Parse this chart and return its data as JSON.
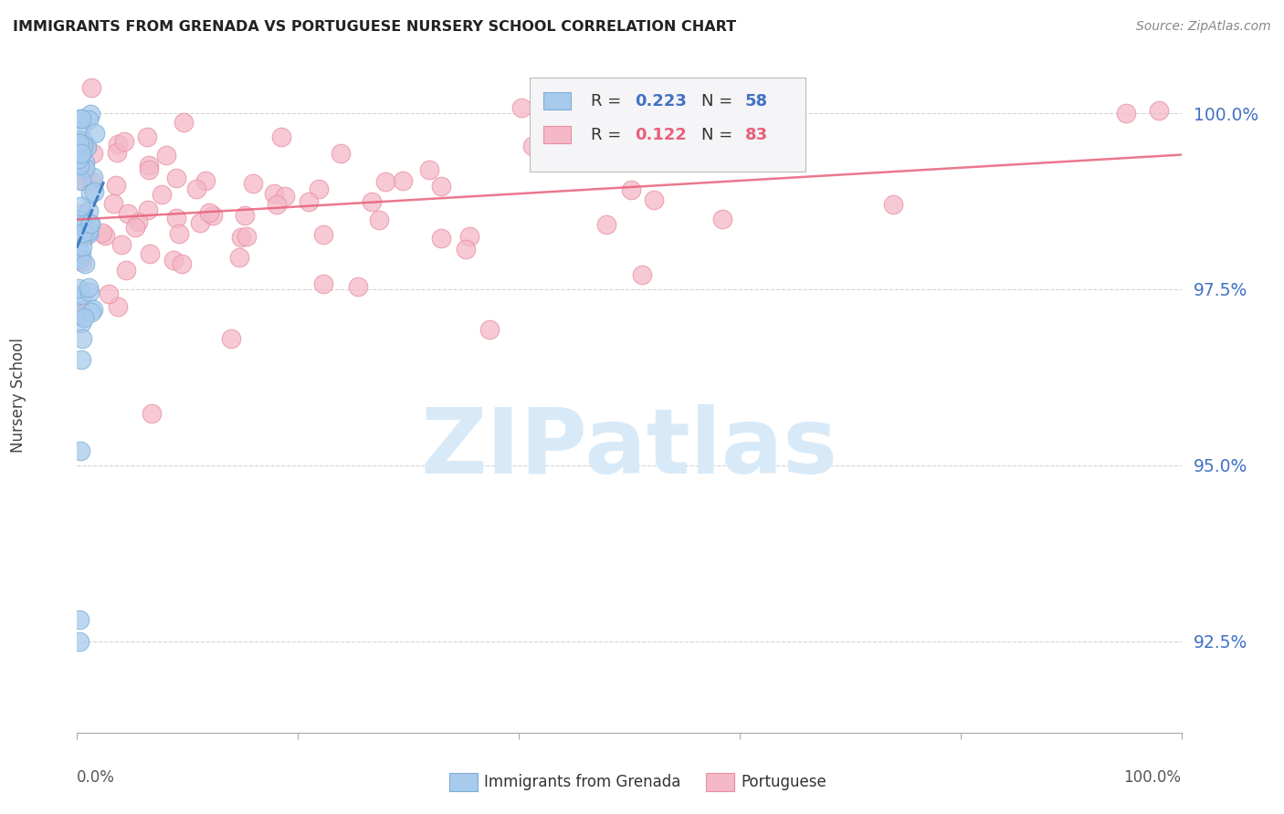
{
  "title": "IMMIGRANTS FROM GRENADA VS PORTUGUESE NURSERY SCHOOL CORRELATION CHART",
  "source": "Source: ZipAtlas.com",
  "ylabel_label": "Nursery School",
  "y_ticks": [
    92.5,
    95.0,
    97.5,
    100.0
  ],
  "y_tick_labels": [
    "92.5%",
    "95.0%",
    "97.5%",
    "100.0%"
  ],
  "xlim": [
    0.0,
    100.0
  ],
  "ylim": [
    91.2,
    100.8
  ],
  "legend_r1_val": "0.223",
  "legend_n1_val": "58",
  "legend_r2_val": "0.122",
  "legend_n2_val": "83",
  "color_blue_fill": "#a8caed",
  "color_pink_fill": "#f4b8c8",
  "color_blue_edge": "#7bafd4",
  "color_pink_edge": "#e8909f",
  "color_blue_line": "#3a7abf",
  "color_pink_line": "#e8607a",
  "color_blue_text": "#4472c4",
  "color_pink_text": "#e8607a",
  "color_grid": "#c8c8c8",
  "watermark_text": "ZIPatlas",
  "watermark_color": "#d8eaf8",
  "legend_bottom_label1": "Immigrants from Grenada",
  "legend_bottom_label2": "Portuguese"
}
